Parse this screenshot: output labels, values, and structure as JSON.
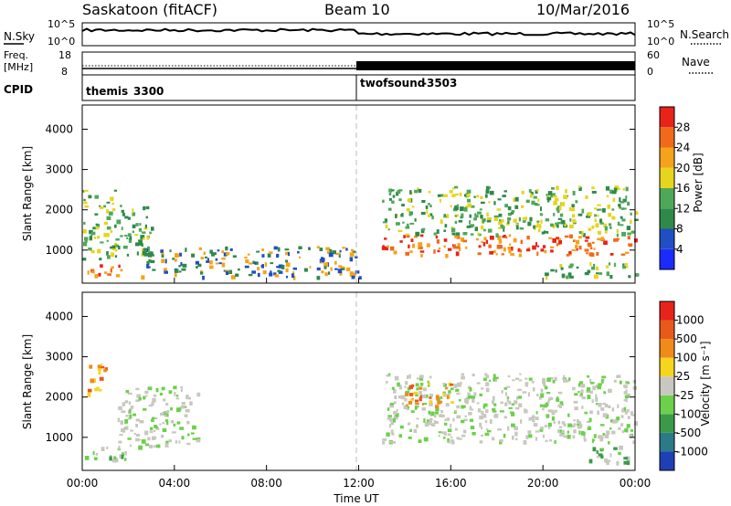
{
  "header": {
    "station": "Saskatoon (fitACF)",
    "beam": "Beam 10",
    "date": "10/Mar/2016"
  },
  "noise_panel": {
    "left_label": "N.Sky",
    "right_label": "N.Search",
    "left_ticks": [
      "10^5",
      "10^0"
    ],
    "right_ticks": [
      "10^5",
      "10^0"
    ]
  },
  "freq_panel": {
    "left_label_1": "Freq.",
    "left_label_2": "[MHz]",
    "right_label": "Nave",
    "left_ticks": [
      "18",
      "8"
    ],
    "right_ticks": [
      "60",
      "0"
    ]
  },
  "cpid_panel": {
    "label": "CPID",
    "modes": [
      {
        "name": "themis",
        "cpid": "3300",
        "start_hour": 0
      },
      {
        "name": "twofsound",
        "cpid": "-3503",
        "start_hour": 12
      }
    ]
  },
  "chart_data": [
    {
      "type": "heatmap",
      "name": "power",
      "ylabel": "Slant Range [km]",
      "y_ticks": [
        "1000",
        "2000",
        "3000",
        "4000"
      ],
      "ylim": [
        180,
        4600
      ],
      "xlim_hours": [
        0,
        24
      ],
      "colorbar": {
        "label": "Power [dB]",
        "ticks": [
          "4",
          "8",
          "12",
          "16",
          "20",
          "24",
          "28"
        ],
        "colors": [
          "#1a2bff",
          "#1f4fc2",
          "#2f8a4a",
          "#4fa85a",
          "#e6d51e",
          "#f5a21c",
          "#f06a1a",
          "#e8231a"
        ]
      },
      "features": [
        {
          "hours": [
            0.0,
            1.7
          ],
          "range_km": [
            400,
            700
          ],
          "level": "high"
        },
        {
          "hours": [
            0.0,
            1.5
          ],
          "range_km": [
            800,
            2500
          ],
          "level": "medium"
        },
        {
          "hours": [
            1.5,
            3.0
          ],
          "range_km": [
            900,
            2200
          ],
          "level": "medium"
        },
        {
          "hours": [
            2.5,
            12.0
          ],
          "range_km": [
            350,
            1100
          ],
          "level": "low"
        },
        {
          "hours": [
            13.0,
            24.0
          ],
          "range_km": [
            900,
            1400
          ],
          "level": "high"
        },
        {
          "hours": [
            13.0,
            24.0
          ],
          "range_km": [
            1400,
            2600
          ],
          "level": "medium"
        },
        {
          "hours": [
            20.0,
            24.0
          ],
          "range_km": [
            350,
            700
          ],
          "level": "medium"
        }
      ]
    },
    {
      "type": "heatmap",
      "name": "velocity",
      "ylabel": "Slant Range [km]",
      "y_ticks": [
        "1000",
        "2000",
        "3000",
        "4000"
      ],
      "ylim": [
        180,
        4600
      ],
      "xlim_hours": [
        0,
        24
      ],
      "xlabel": "Time UT",
      "x_ticks": [
        "00:00",
        "04:00",
        "08:00",
        "12:00",
        "16:00",
        "20:00",
        "00:00"
      ],
      "colorbar": {
        "label": "Velocity [m s⁻¹]",
        "ticks": [
          "1000",
          "500",
          "100",
          "25",
          "-25",
          "-100",
          "-500",
          "-1000"
        ],
        "colors": [
          "#1f3fb4",
          "#2a7a8a",
          "#3a9a4a",
          "#6cd04a",
          "#c8c8c0",
          "#f5d51e",
          "#f08a1a",
          "#e85a1a",
          "#e8231a"
        ]
      },
      "features": [
        {
          "hours": [
            0.0,
            2.0
          ],
          "range_km": [
            400,
            800
          ],
          "level": "toward"
        },
        {
          "hours": [
            0.2,
            1.0
          ],
          "range_km": [
            2100,
            2900
          ],
          "level": "away"
        },
        {
          "hours": [
            1.5,
            5.0
          ],
          "range_km": [
            800,
            2300
          ],
          "level": "zero"
        },
        {
          "hours": [
            13.0,
            24.0
          ],
          "range_km": [
            900,
            2600
          ],
          "level": "zero"
        },
        {
          "hours": [
            14.0,
            16.0
          ],
          "range_km": [
            1800,
            2400
          ],
          "level": "away"
        },
        {
          "hours": [
            22.0,
            24.0
          ],
          "range_km": [
            400,
            800
          ],
          "level": "toward"
        }
      ]
    }
  ]
}
